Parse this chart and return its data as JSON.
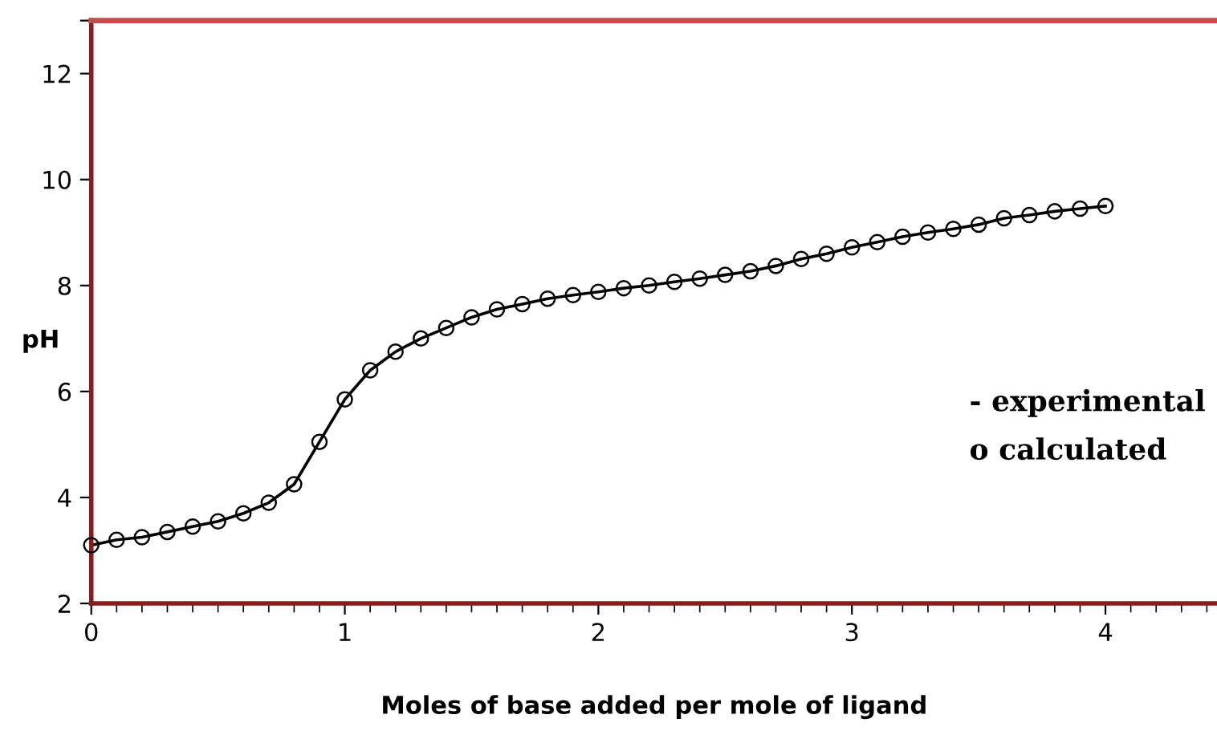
{
  "chart_data": {
    "type": "line",
    "xlabel": "Moles of base added per mole of ligand",
    "ylabel": "pH",
    "x": [
      0,
      0.1,
      0.2,
      0.3,
      0.4,
      0.5,
      0.6,
      0.7,
      0.8,
      0.9,
      1.0,
      1.1,
      1.2,
      1.3,
      1.4,
      1.5,
      1.6,
      1.7,
      1.8,
      1.9,
      2.0,
      2.1,
      2.2,
      2.3,
      2.4,
      2.5,
      2.6,
      2.7,
      2.8,
      2.9,
      3.0,
      3.1,
      3.2,
      3.3,
      3.4,
      3.5,
      3.6,
      3.7,
      3.8,
      3.9,
      4.0
    ],
    "series": [
      {
        "color": "#000000",
        "marker": "none",
        "values": [
          3.1,
          3.2,
          3.25,
          3.35,
          3.45,
          3.55,
          3.7,
          3.9,
          4.25,
          5.05,
          5.85,
          6.4,
          6.75,
          7.0,
          7.2,
          7.4,
          7.55,
          7.65,
          7.75,
          7.82,
          7.88,
          7.95,
          8.0,
          8.07,
          8.13,
          8.2,
          8.27,
          8.37,
          8.5,
          8.6,
          8.72,
          8.82,
          8.92,
          9.0,
          9.07,
          9.15,
          9.27,
          9.33,
          9.4,
          9.45,
          9.5
        ]
      },
      {
        "type": "scatter",
        "color": "#000000",
        "marker": "circle",
        "values": [
          3.1,
          3.2,
          3.25,
          3.35,
          3.45,
          3.55,
          3.7,
          3.9,
          4.25,
          5.05,
          5.85,
          6.4,
          6.75,
          7.0,
          7.2,
          7.4,
          7.55,
          7.65,
          7.75,
          7.82,
          7.88,
          7.95,
          8.0,
          8.07,
          8.13,
          8.2,
          8.27,
          8.37,
          8.5,
          8.6,
          8.72,
          8.82,
          8.92,
          9.0,
          9.07,
          9.15,
          9.27,
          9.33,
          9.4,
          9.45,
          9.5
        ]
      }
    ],
    "xlim": [
      0,
      4.44
    ],
    "xticks": [
      0,
      1,
      2,
      3,
      4
    ],
    "ylim": [
      2,
      13
    ],
    "yticks": [
      2,
      4,
      6,
      8,
      10,
      12,
      {
        "value": 13,
        "label": null
      }
    ],
    "grid": false,
    "legend": false,
    "annotations": [
      "- experimental",
      "o calculated"
    ]
  }
}
